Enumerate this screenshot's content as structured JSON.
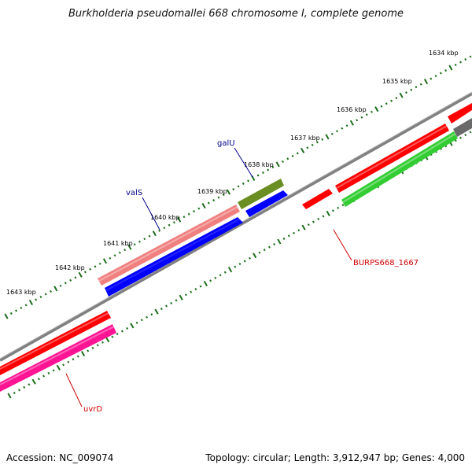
{
  "title": "Burkholderia pseudomallei 668 chromosome I, complete genome",
  "footer": {
    "accession": "Accession: NC_009074",
    "topology": "Topology: circular; Length: 3,912,947 bp; Genes: 4,000"
  },
  "ticks": [
    {
      "label": "1634 kbp",
      "pos": 1634
    },
    {
      "label": "1635 kbp",
      "pos": 1635
    },
    {
      "label": "1636 kbp",
      "pos": 1636
    },
    {
      "label": "1637 kbp",
      "pos": 1637
    },
    {
      "label": "1638 kbp",
      "pos": 1638
    },
    {
      "label": "1639 kbp",
      "pos": 1639
    },
    {
      "label": "1640 kbp",
      "pos": 1640
    },
    {
      "label": "1641 kbp",
      "pos": 1641
    },
    {
      "label": "1642 kbp",
      "pos": 1642
    },
    {
      "label": "1643 kbp",
      "pos": 1643
    }
  ],
  "gene_labels": [
    {
      "name": "galU",
      "color": "#00008b"
    },
    {
      "name": "valS",
      "color": "#00008b"
    },
    {
      "name": "BURPS668_1667",
      "color": "#cc0000"
    },
    {
      "name": "uvrD",
      "color": "#cc0000"
    }
  ],
  "colors": {
    "backbone": "#808080",
    "tick": "#1a6e1a",
    "red_cds": "#ff0000",
    "pink_cds": "#f08080",
    "blue_cds": "#0000ff",
    "olive_cds": "#6b8e23",
    "green_cds": "#32cd32",
    "magenta_cds": "#ff1493",
    "grey_cds": "#696969"
  }
}
